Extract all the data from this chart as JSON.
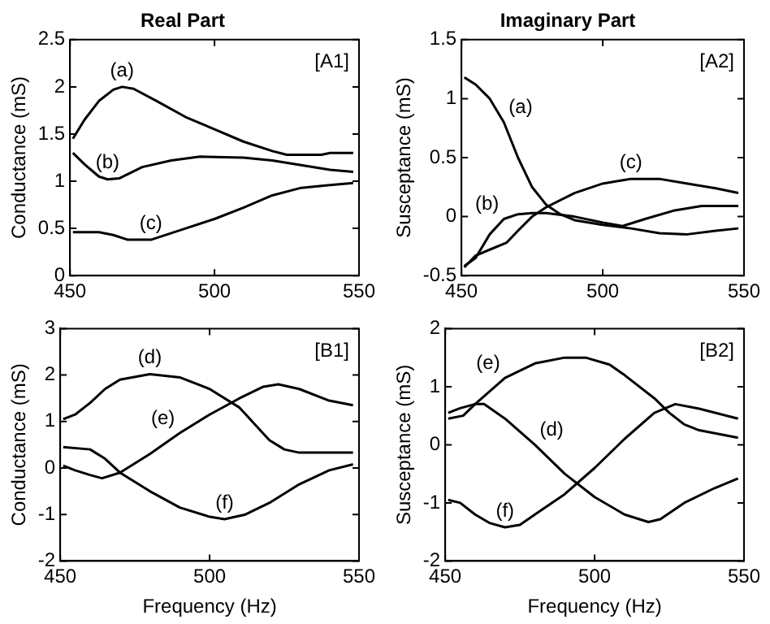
{
  "chart_data": [
    {
      "type": "line",
      "title": "Real Part",
      "ylabel": "Conductance (mS)",
      "xlim": [
        450,
        550
      ],
      "xticks": [
        450,
        500,
        550
      ],
      "ylim": [
        0,
        2.5
      ],
      "yticks": [
        0,
        0.5,
        1,
        1.5,
        2,
        2.5
      ],
      "grid": false,
      "legend": false,
      "series": [
        {
          "color": "#000000",
          "x": [
            451,
            455,
            460,
            465,
            468,
            472,
            480,
            490,
            500,
            510,
            520,
            525,
            537,
            540,
            548
          ],
          "values": [
            1.45,
            1.65,
            1.85,
            1.97,
            2.0,
            1.98,
            1.85,
            1.68,
            1.55,
            1.42,
            1.32,
            1.28,
            1.28,
            1.3,
            1.3
          ]
        },
        {
          "color": "#000000",
          "x": [
            451,
            455,
            460,
            463,
            467,
            475,
            485,
            495,
            510,
            520,
            530,
            540,
            548
          ],
          "values": [
            1.3,
            1.18,
            1.05,
            1.02,
            1.03,
            1.15,
            1.22,
            1.26,
            1.25,
            1.22,
            1.17,
            1.12,
            1.1
          ]
        },
        {
          "color": "#000000",
          "x": [
            451,
            460,
            465,
            470,
            478,
            490,
            500,
            510,
            520,
            530,
            540,
            548
          ],
          "values": [
            0.46,
            0.46,
            0.43,
            0.38,
            0.38,
            0.5,
            0.6,
            0.72,
            0.85,
            0.93,
            0.96,
            0.98
          ]
        }
      ],
      "annotations": [
        {
          "text": "(a)",
          "x": 468,
          "y": 2.0
        },
        {
          "text": "(b)",
          "x": 463,
          "y": 1.02
        },
        {
          "text": "(c)",
          "x": 478,
          "y": 0.38
        },
        "[A1]"
      ]
    },
    {
      "type": "line",
      "title": "Imaginary Part",
      "ylabel": "Susceptance (mS)",
      "xlim": [
        450,
        550
      ],
      "xticks": [
        450,
        500,
        550
      ],
      "ylim": [
        -0.5,
        1.5
      ],
      "yticks": [
        -0.5,
        0,
        0.5,
        1,
        1.5
      ],
      "grid": false,
      "legend": false,
      "series": [
        {
          "color": "#000000",
          "x": [
            451,
            455,
            460,
            465,
            470,
            475,
            480,
            485,
            490,
            500,
            510,
            520,
            530,
            540,
            548
          ],
          "values": [
            1.18,
            1.12,
            1.0,
            0.8,
            0.5,
            0.25,
            0.1,
            0.02,
            -0.03,
            -0.07,
            -0.1,
            -0.14,
            -0.15,
            -0.12,
            -0.1
          ]
        },
        {
          "color": "#000000",
          "x": [
            451,
            455,
            460,
            465,
            470,
            475,
            480,
            490,
            500,
            507,
            515,
            525,
            535,
            548
          ],
          "values": [
            -0.42,
            -0.35,
            -0.15,
            -0.02,
            0.02,
            0.03,
            0.03,
            0.0,
            -0.05,
            -0.08,
            -0.02,
            0.05,
            0.09,
            0.09
          ]
        },
        {
          "color": "#000000",
          "x": [
            451,
            455,
            460,
            466,
            470,
            475,
            480,
            490,
            500,
            510,
            520,
            530,
            540,
            548
          ],
          "values": [
            -0.43,
            -0.33,
            -0.28,
            -0.22,
            -0.12,
            0,
            0.08,
            0.2,
            0.28,
            0.32,
            0.32,
            0.28,
            0.24,
            0.2
          ]
        }
      ],
      "annotations": [
        {
          "text": "(a)",
          "x": 465,
          "y": 0.8
        },
        {
          "text": "(b)",
          "x": 465,
          "y": -0.02
        },
        {
          "text": "(c)",
          "x": 510,
          "y": 0.32
        },
        "[A2]"
      ]
    },
    {
      "type": "line",
      "xlabel": "Frequency (Hz)",
      "ylabel": "Conductance (mS)",
      "xlim": [
        450,
        550
      ],
      "xticks": [
        450,
        500,
        550
      ],
      "ylim": [
        -2,
        3
      ],
      "yticks": [
        -2,
        -1,
        0,
        1,
        2,
        3
      ],
      "grid": false,
      "legend": false,
      "series": [
        {
          "color": "#000000",
          "x": [
            451,
            455,
            460,
            465,
            470,
            480,
            490,
            500,
            510,
            515,
            520,
            525,
            530,
            548
          ],
          "values": [
            1.05,
            1.15,
            1.4,
            1.7,
            1.9,
            2.02,
            1.95,
            1.7,
            1.3,
            0.95,
            0.6,
            0.4,
            0.33,
            0.33
          ]
        },
        {
          "color": "#000000",
          "x": [
            451,
            455,
            460,
            464,
            470,
            480,
            490,
            500,
            510,
            518,
            523,
            530,
            540,
            548
          ],
          "values": [
            0.05,
            -0.05,
            -0.15,
            -0.22,
            -0.1,
            0.3,
            0.75,
            1.15,
            1.5,
            1.75,
            1.8,
            1.7,
            1.45,
            1.35
          ]
        },
        {
          "color": "#000000",
          "x": [
            451,
            460,
            465,
            470,
            480,
            490,
            500,
            505,
            512,
            520,
            530,
            540,
            548
          ],
          "values": [
            0.45,
            0.4,
            0.2,
            -0.1,
            -0.5,
            -0.85,
            -1.05,
            -1.1,
            -1.0,
            -0.75,
            -0.35,
            -0.05,
            0.08
          ]
        }
      ],
      "annotations": [
        {
          "text": "(d)",
          "x": 480,
          "y": 2.02
        },
        {
          "text": "(e)",
          "x": 490,
          "y": 0.75
        },
        {
          "text": "(f)",
          "x": 505,
          "y": -1.1
        },
        "[B1]"
      ]
    },
    {
      "type": "line",
      "xlabel": "Frequency (Hz)",
      "ylabel": "Susceptance (mS)",
      "xlim": [
        450,
        550
      ],
      "xticks": [
        450,
        500,
        550
      ],
      "ylim": [
        -2,
        2
      ],
      "yticks": [
        -2,
        -1,
        0,
        1,
        2
      ],
      "grid": false,
      "legend": false,
      "series": [
        {
          "color": "#000000",
          "x": [
            451,
            456,
            460,
            470,
            480,
            490,
            497,
            505,
            510,
            520,
            525,
            530,
            535,
            548
          ],
          "values": [
            0.45,
            0.5,
            0.7,
            1.15,
            1.4,
            1.5,
            1.5,
            1.38,
            1.2,
            0.8,
            0.55,
            0.35,
            0.25,
            0.12
          ]
        },
        {
          "color": "#000000",
          "x": [
            451,
            455,
            460,
            463,
            470,
            480,
            490,
            500,
            510,
            518,
            522,
            530,
            540,
            548
          ],
          "values": [
            0.55,
            0.63,
            0.7,
            0.7,
            0.45,
            0,
            -0.5,
            -0.9,
            -1.2,
            -1.33,
            -1.28,
            -1.0,
            -0.75,
            -0.58
          ]
        },
        {
          "color": "#000000",
          "x": [
            451,
            455,
            460,
            465,
            470,
            475,
            480,
            490,
            500,
            510,
            520,
            527,
            535,
            548
          ],
          "values": [
            -0.95,
            -1.0,
            -1.2,
            -1.35,
            -1.42,
            -1.38,
            -1.2,
            -0.85,
            -0.4,
            0.1,
            0.55,
            0.7,
            0.62,
            0.45
          ]
        }
      ],
      "annotations": [
        {
          "text": "(e)",
          "x": 470,
          "y": 1.15
        },
        {
          "text": "(d)",
          "x": 480,
          "y": 0
        },
        {
          "text": "(f)",
          "x": 470,
          "y": -1.42
        },
        "[B2]"
      ]
    }
  ]
}
